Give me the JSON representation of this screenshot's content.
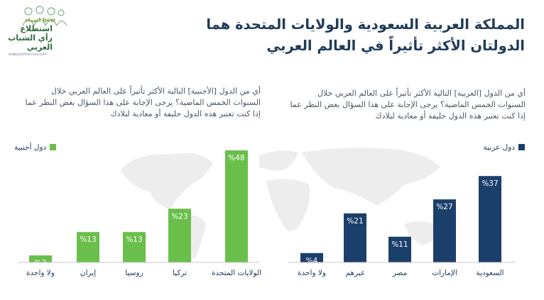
{
  "logo": {
    "brand": "اصداء bcw",
    "line1": "استطلاع",
    "line2": "رأي الشباب",
    "line3": "العربي",
    "url": "arabyouthsurvey.com"
  },
  "title": {
    "line1": "المملكة العربية السعودية والولايات المتحدة هما",
    "line2": "الدولتان الأكثر تأثيراً في العالم العربي"
  },
  "questions": {
    "arab": "أي من الدول [العربية] التالية الأكثر تأثيراً على العالم العربي خلال السنوات الخمس الماضية؟ يرجى الإجابة على هذا السؤال بغض النظر عما إذا كنت تعتبر هذه الدول حليفة أو معادية لبلادك",
    "foreign": "أي من الدول [الأجنبية] التالية الأكثر تأثيراً على العالم العربي خلال السنوات الخمس الماضية؟ يرجى الإجابة على هذا السؤال بغض النظر عما إذا كنت تعتبر هذه الدول حليفة أو معادية لبلادك"
  },
  "colors": {
    "arab": "#1b3f6b",
    "foreign": "#6abf4b",
    "title": "#1f3b5a",
    "map": "#ededed"
  },
  "chart_data": [
    {
      "type": "bar",
      "legend": "دول عربية",
      "categories": [
        "السعودية",
        "الإمارات",
        "مصر",
        "غيرهم",
        "ولا واحدة"
      ],
      "values": [
        37,
        27,
        11,
        21,
        4
      ],
      "value_labels": [
        "%37",
        "%27",
        "%11",
        "%21",
        "%4"
      ],
      "ylim": [
        0,
        48
      ]
    },
    {
      "type": "bar",
      "legend": "دول أجنبية",
      "categories": [
        "الولايات المتحدة",
        "تركيا",
        "روسيا",
        "إيران",
        "ولا واحدة"
      ],
      "values": [
        48,
        23,
        13,
        13,
        3
      ],
      "value_labels": [
        "%48",
        "%23",
        "%13",
        "%13",
        "%3"
      ],
      "ylim": [
        0,
        48
      ]
    }
  ]
}
